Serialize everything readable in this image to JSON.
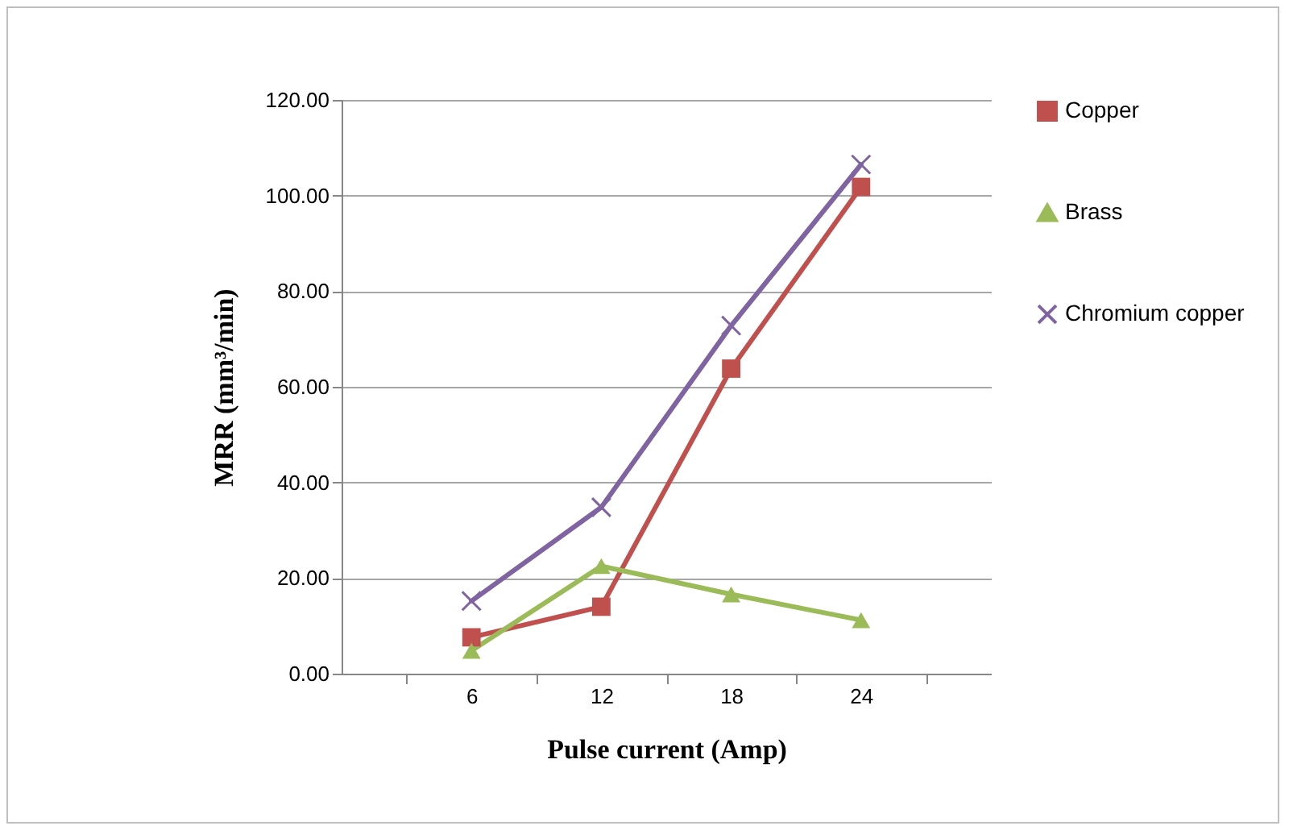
{
  "chart_data": {
    "type": "line",
    "xlabel": "Pulse current (Amp)",
    "ylabel": "MRR (mm³/min)",
    "categories": [
      "6",
      "12",
      "18",
      "24"
    ],
    "series": [
      {
        "name": "Copper",
        "color": "#c0504d",
        "marker": "square",
        "values": [
          7.6,
          14.0,
          63.8,
          101.8
        ]
      },
      {
        "name": "Brass",
        "color": "#9bbb59",
        "marker": "triangle",
        "values": [
          4.8,
          22.5,
          16.6,
          11.2
        ]
      },
      {
        "name": "Chromium copper",
        "color": "#8064a2",
        "marker": "cross",
        "values": [
          15.2,
          34.8,
          72.8,
          106.5
        ]
      }
    ],
    "ylim": [
      0,
      120
    ],
    "yticks": [
      {
        "value": 0,
        "label": "0.00"
      },
      {
        "value": 20,
        "label": "20.00"
      },
      {
        "value": 40,
        "label": "40.00"
      },
      {
        "value": 60,
        "label": "60.00"
      },
      {
        "value": 80,
        "label": "80.00"
      },
      {
        "value": 100,
        "label": "100.00"
      },
      {
        "value": 120,
        "label": "120.00"
      }
    ],
    "grid": "y",
    "legend": "right",
    "line_style": "solid"
  }
}
